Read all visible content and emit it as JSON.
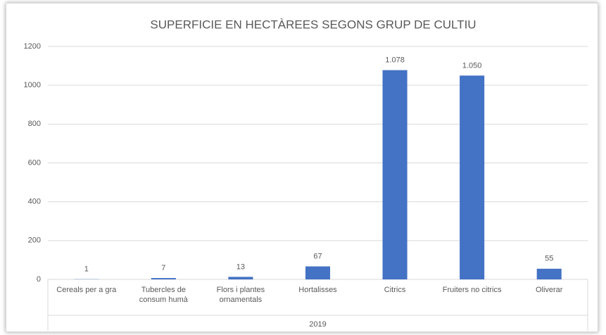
{
  "chart_data": {
    "type": "bar",
    "title": "SUPERFICIE EN HECTÀREES SEGONS GRUP DE CULTIU",
    "categories": [
      "Cereals per a gra",
      "Tubercles de consum humà",
      "Flors i plantes ornamentals",
      "Hortalisses",
      "Citrics",
      "Fruiters no citrics",
      "Oliverar"
    ],
    "values": [
      1,
      7,
      13,
      67,
      1078,
      1050,
      55
    ],
    "value_labels": [
      "1",
      "7",
      "13",
      "67",
      "1.078",
      "1.050",
      "55"
    ],
    "x_group": "2019",
    "color": "#4472c4",
    "ylim": [
      0,
      1200
    ],
    "yticks": [
      0,
      200,
      400,
      600,
      800,
      1000,
      1200
    ],
    "grid": true
  }
}
